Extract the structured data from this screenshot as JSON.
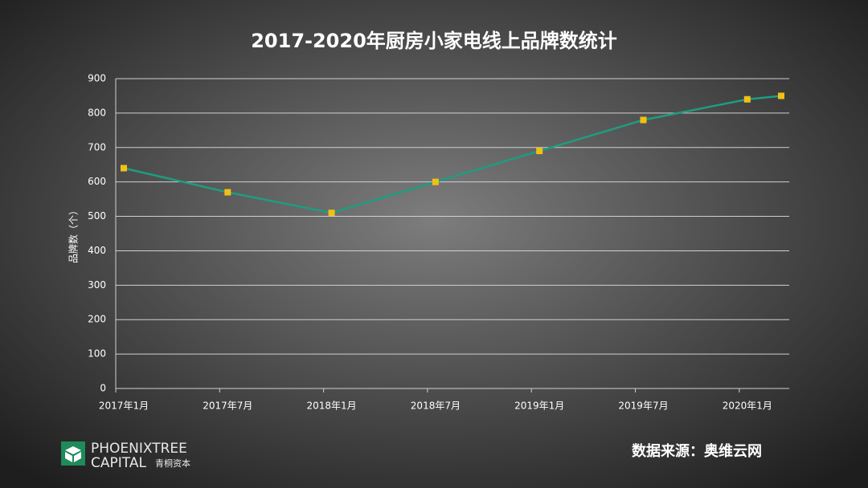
{
  "chart_data": {
    "type": "line",
    "title": "2017-2020年厨房小家电线上品牌数统计",
    "y_label": "品牌数（个）",
    "categories": [
      "2017年1月",
      "2017年7月",
      "2018年1月",
      "2018年7月",
      "2019年1月",
      "2019年7月",
      "2020年1月",
      null
    ],
    "series": [
      {
        "name": "品牌数",
        "color": "#1f9c80",
        "marker_color": "#f2c014",
        "values": [
          640,
          570,
          510,
          600,
          690,
          780,
          840,
          850
        ]
      }
    ],
    "ylim": [
      0,
      900
    ],
    "yticks": [
      0,
      100,
      200,
      300,
      400,
      500,
      600,
      700,
      800,
      900
    ],
    "grid": true,
    "source": "数据来源：奥维云网"
  },
  "logo": {
    "name": "PHOENIXTREE",
    "sub": "CAPITAL",
    "cn": "青桐资本"
  }
}
